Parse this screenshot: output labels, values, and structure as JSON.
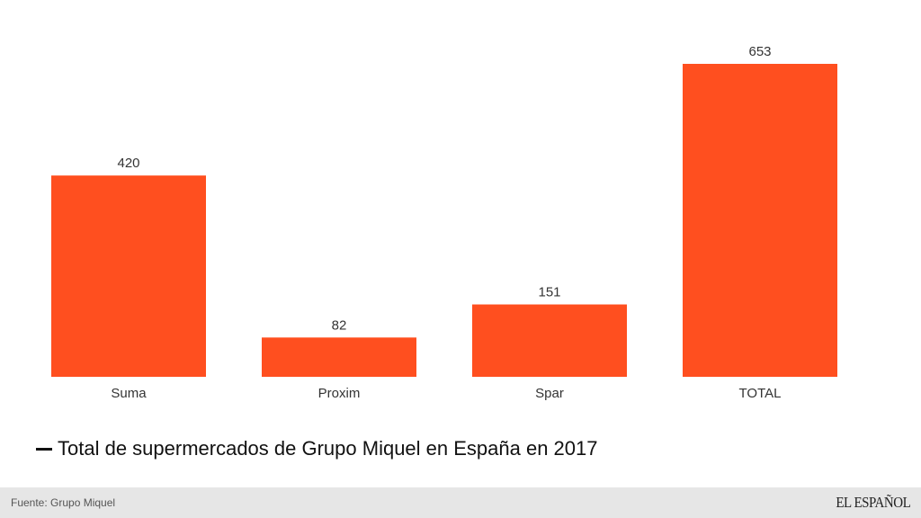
{
  "chart_data": {
    "type": "bar",
    "categories": [
      "Suma",
      "Proxim",
      "Spar",
      "TOTAL"
    ],
    "values": [
      420,
      82,
      151,
      653
    ],
    "title": "Total de supermercados de Grupo Miquel en España en 2017",
    "xlabel": "",
    "ylabel": "",
    "ylim": [
      0,
      653
    ],
    "grid": false,
    "bar_color": "#ff4f1f",
    "legend": {
      "position": "bottom-left",
      "entries": [
        "Total de supermercados de Grupo Miquel en España en 2017"
      ],
      "symbol": "—"
    }
  },
  "footer": {
    "source": "Fuente: Grupo Miquel",
    "logo": "EL ESPAÑOL"
  }
}
